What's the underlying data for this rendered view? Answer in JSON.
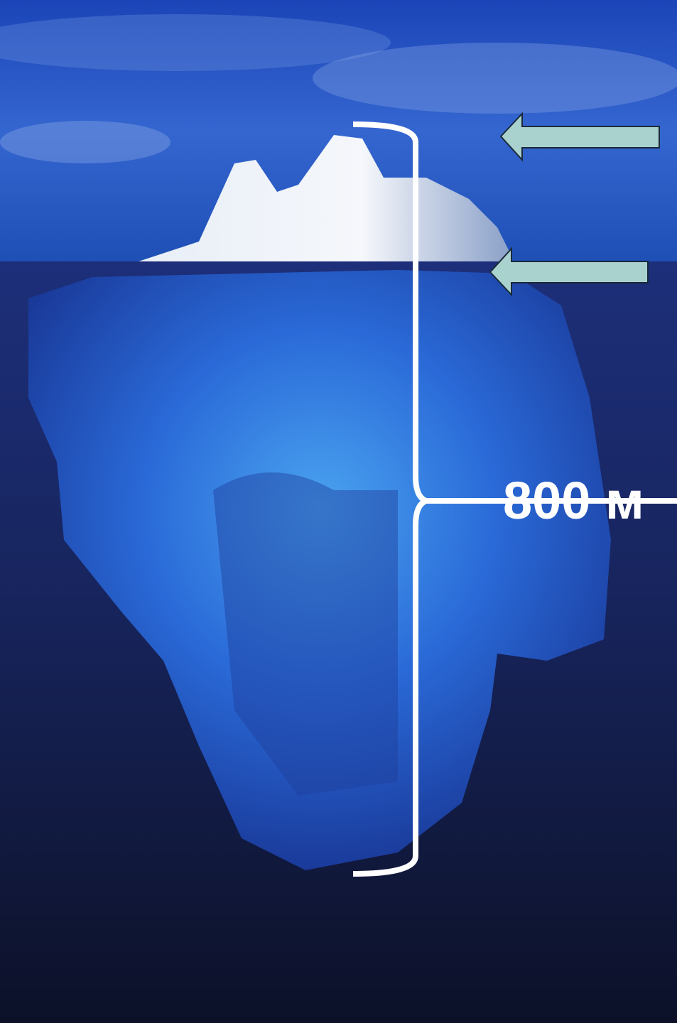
{
  "annotation": {
    "label": "800 м"
  }
}
